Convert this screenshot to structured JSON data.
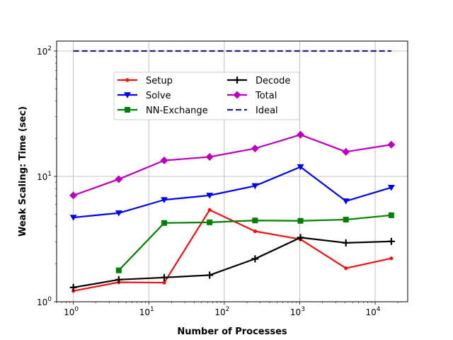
{
  "chart_data": {
    "type": "line",
    "xscale": "log",
    "yscale": "log",
    "xlabel": "Number of Processes",
    "ylabel": "Weak Scaling: Time (sec)",
    "xlim": [
      0.6,
      27000
    ],
    "ylim": [
      1,
      120
    ],
    "grid": true,
    "legend": {
      "placement": "upper-center",
      "columns": 2
    },
    "x_ticks": [
      {
        "value": 1,
        "base": "10",
        "exp": "0"
      },
      {
        "value": 10,
        "base": "10",
        "exp": "1"
      },
      {
        "value": 100,
        "base": "10",
        "exp": "2"
      },
      {
        "value": 1000,
        "base": "10",
        "exp": "3"
      },
      {
        "value": 10000,
        "base": "10",
        "exp": "4"
      }
    ],
    "y_ticks": [
      {
        "value": 1,
        "base": "10",
        "exp": "0"
      },
      {
        "value": 10,
        "base": "10",
        "exp": "1"
      },
      {
        "value": 100,
        "base": "10",
        "exp": "2"
      }
    ],
    "series": [
      {
        "name": "Setup",
        "color": "#ee1111",
        "marker": "dot",
        "dash": "solid",
        "x": [
          1,
          4,
          16,
          64,
          256,
          1024,
          4096,
          16384
        ],
        "y": [
          1.22,
          1.43,
          1.42,
          5.4,
          3.65,
          3.15,
          1.85,
          2.22
        ]
      },
      {
        "name": "Solve",
        "color": "#0000ee",
        "marker": "triangle-down",
        "dash": "solid",
        "x": [
          1,
          4,
          16,
          64,
          256,
          1024,
          4096,
          16384
        ],
        "y": [
          4.7,
          5.1,
          6.5,
          7.05,
          8.4,
          11.9,
          6.35,
          8.15
        ]
      },
      {
        "name": "NN-Exchange",
        "color": "#008000",
        "marker": "square",
        "dash": "solid",
        "x": [
          4,
          16,
          64,
          256,
          1024,
          4096,
          16384
        ],
        "y": [
          1.78,
          4.25,
          4.3,
          4.45,
          4.42,
          4.52,
          4.9
        ]
      },
      {
        "name": "Decode",
        "color": "#000000",
        "marker": "plus",
        "dash": "solid",
        "x": [
          1,
          4,
          16,
          64,
          256,
          1024,
          4096,
          16384
        ],
        "y": [
          1.3,
          1.5,
          1.56,
          1.63,
          2.2,
          3.25,
          2.95,
          3.03
        ]
      },
      {
        "name": "Total",
        "color": "#bb00bb",
        "marker": "diamond",
        "dash": "solid",
        "x": [
          1,
          4,
          16,
          64,
          256,
          1024,
          4096,
          16384
        ],
        "y": [
          7.05,
          9.5,
          13.4,
          14.3,
          16.7,
          21.5,
          15.7,
          17.9
        ]
      },
      {
        "name": "Ideal",
        "color": "#22227a",
        "marker": "none",
        "dash": "dashed",
        "x": [
          1,
          16384
        ],
        "y": [
          100,
          100
        ]
      }
    ]
  }
}
